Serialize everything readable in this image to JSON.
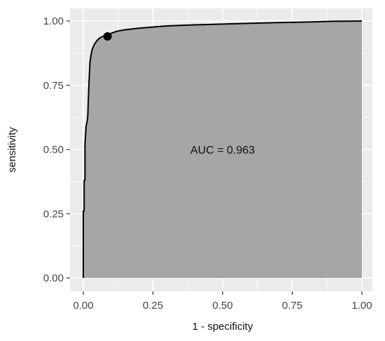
{
  "chart_data": {
    "type": "area",
    "title": "",
    "xlabel": "1 - specificity",
    "ylabel": "sensitivity",
    "xlim": [
      0,
      1
    ],
    "ylim": [
      0,
      1
    ],
    "grid": true,
    "legend": "none",
    "x_ticks": [
      "0.00",
      "0.25",
      "0.50",
      "0.75",
      "1.00"
    ],
    "y_ticks": [
      "0.00",
      "0.25",
      "0.50",
      "0.75",
      "1.00"
    ],
    "x_tick_values": [
      0,
      0.25,
      0.5,
      0.75,
      1
    ],
    "y_tick_values": [
      0,
      0.25,
      0.5,
      0.75,
      1
    ],
    "annotation": {
      "text": "AUC = 0.963",
      "x": 0.5,
      "y": 0.5
    },
    "series": [
      {
        "x": [
          0.0,
          0.0,
          0.003,
          0.003,
          0.006,
          0.006,
          0.01,
          0.012,
          0.014,
          0.016,
          0.02,
          0.024,
          0.028,
          0.032,
          0.04,
          0.05,
          0.06,
          0.07,
          0.08,
          0.09,
          0.1,
          0.12,
          0.15,
          0.2,
          0.3,
          0.4,
          0.5,
          0.6,
          0.7,
          0.8,
          0.9,
          1.0
        ],
        "y": [
          0.0,
          0.26,
          0.26,
          0.38,
          0.38,
          0.52,
          0.59,
          0.6,
          0.61,
          0.63,
          0.75,
          0.84,
          0.87,
          0.89,
          0.91,
          0.925,
          0.935,
          0.94,
          0.945,
          0.948,
          0.952,
          0.96,
          0.966,
          0.972,
          0.981,
          0.985,
          0.988,
          0.991,
          0.994,
          0.996,
          0.999,
          1.0
        ]
      }
    ],
    "highlight_point": {
      "x": 0.087,
      "y": 0.94
    },
    "colors": {
      "panel_background": "#ebebeb",
      "grid_line": "#ffffff",
      "area_fill": "#a6a6a6",
      "curve": "#000000",
      "point": "#000000",
      "tick_mark": "#333333"
    }
  }
}
